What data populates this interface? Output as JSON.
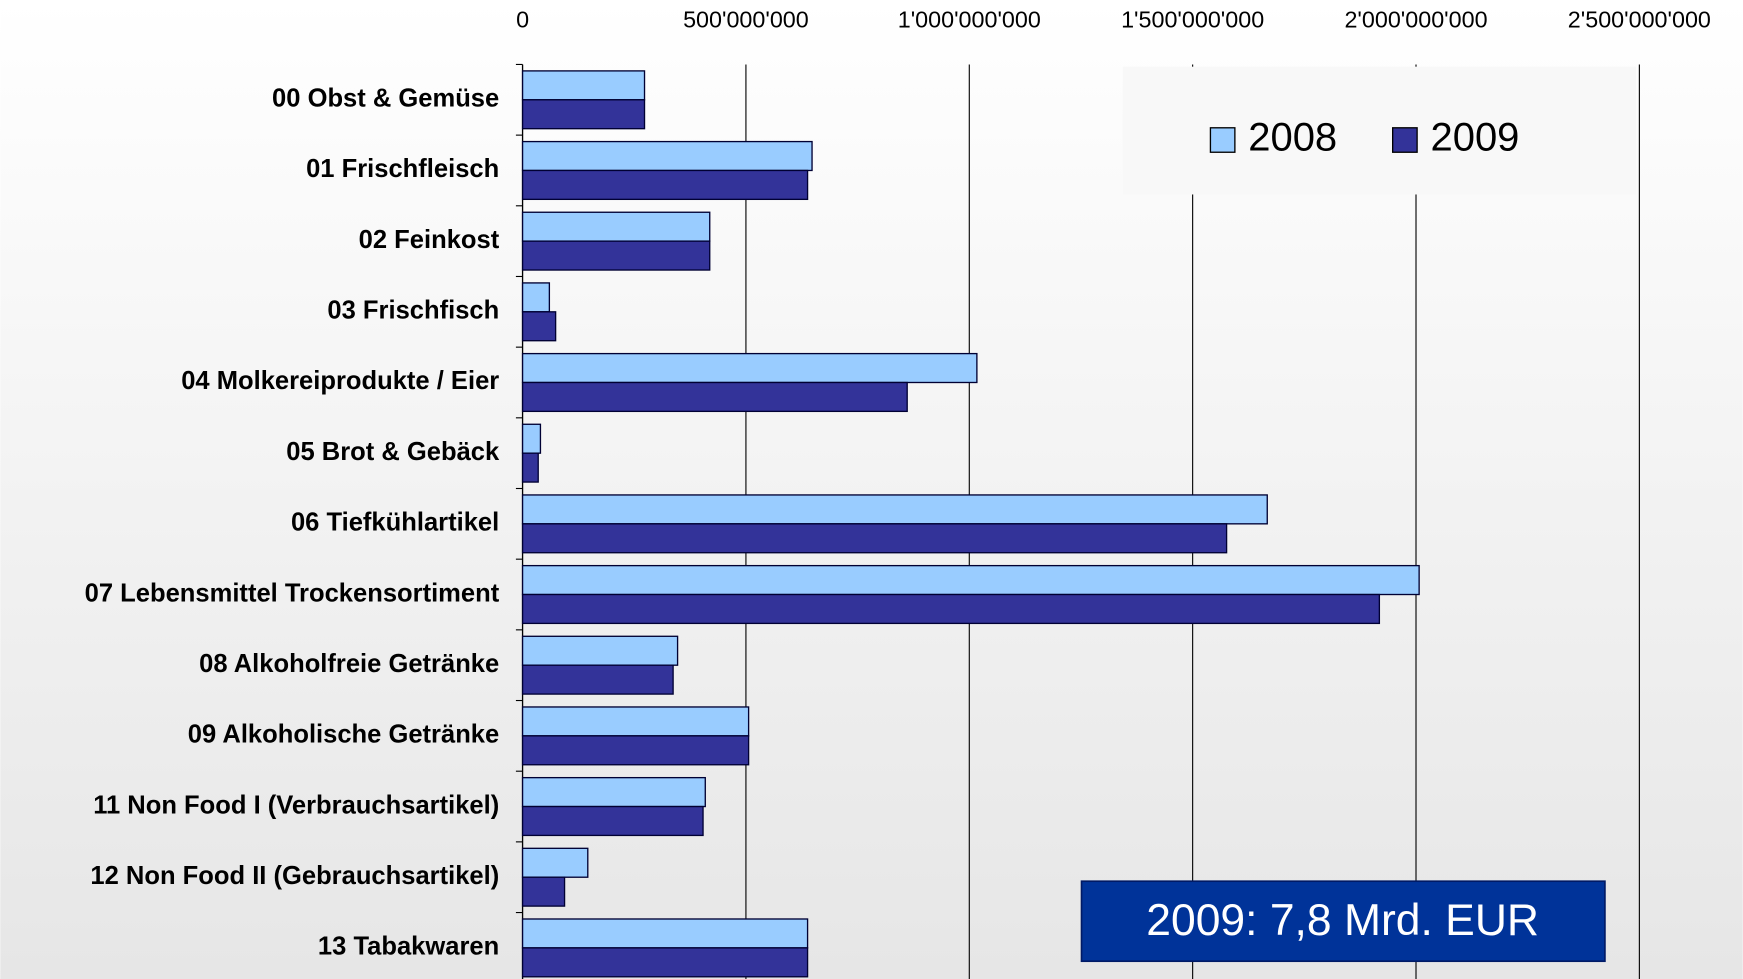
{
  "chart_data": {
    "type": "bar",
    "orientation": "horizontal",
    "categories": [
      "00 Obst & Gemüse",
      "01 Frischfleisch",
      "02 Feinkost",
      "03 Frischfisch",
      "04 Molkereiprodukte / Eier",
      "05 Brot & Gebäck",
      "06 Tiefkühlartikel",
      "07 Lebensmittel Trockensortiment",
      "08 Alkoholfreie Getränke",
      "09 Alkoholische Getränke",
      "11 Non Food I (Verbrauchsartikel)",
      "12 Non Food II (Gebrauchsartikel)",
      "13 Tabakwaren"
    ],
    "series": [
      {
        "name": "2008",
        "color": "#99ccff",
        "values": [
          273000000,
          648000000,
          419000000,
          60000000,
          1017000000,
          40000000,
          1667000000,
          2007000000,
          347000000,
          506000000,
          409000000,
          146000000,
          638000000
        ]
      },
      {
        "name": "2009",
        "color": "#333399",
        "values": [
          273000000,
          638000000,
          419000000,
          74000000,
          861000000,
          35000000,
          1576000000,
          1918000000,
          337000000,
          506000000,
          404000000,
          94000000,
          638000000
        ]
      }
    ],
    "xlim": [
      0,
      2500000000
    ],
    "xticks": [
      0,
      {
        "value": 500000000,
        "label": "500'000'000"
      },
      {
        "value": 1000000000,
        "label": "1'000'000'000"
      },
      {
        "value": 1500000000,
        "label": "1'500'000'000"
      },
      {
        "value": 2000000000,
        "label": "2'000'000'000"
      },
      {
        "value": 2500000000,
        "label": "2'500'000'000"
      }
    ],
    "grid": true,
    "legend": "top-right",
    "annotation": "2009: 7,8 Mrd. EUR",
    "annotation_color": "#003399"
  }
}
